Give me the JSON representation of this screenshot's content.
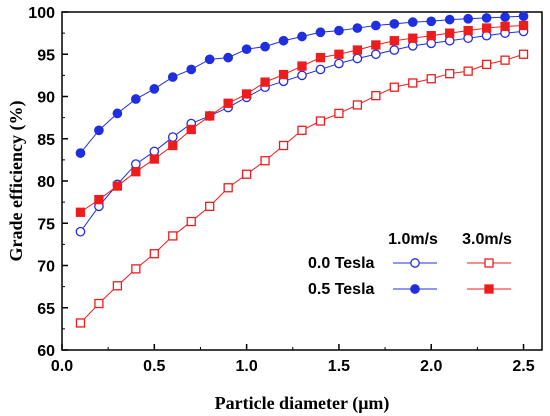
{
  "chart_data": {
    "type": "line",
    "xlabel": "Particle diameter (μm)",
    "ylabel": "Grade efficiency (%)",
    "xlim": [
      0.0,
      2.6
    ],
    "ylim": [
      60,
      100
    ],
    "x_ticks": [
      0.0,
      0.5,
      1.0,
      1.5,
      2.0,
      2.5
    ],
    "x_tick_labels": [
      "0.0",
      "0.5",
      "1.0",
      "1.5",
      "2.0",
      "2.5"
    ],
    "y_ticks": [
      60,
      65,
      70,
      75,
      80,
      85,
      90,
      95,
      100
    ],
    "y_tick_labels": [
      "60",
      "65",
      "70",
      "75",
      "80",
      "85",
      "90",
      "95",
      "100"
    ],
    "grid": false,
    "legend": {
      "placement": "lower-right",
      "column_headers": [
        "1.0m/s",
        "3.0m/s"
      ],
      "row_labels": [
        "0.0 Tesla",
        "0.5 Tesla"
      ]
    },
    "x": [
      0.1,
      0.2,
      0.3,
      0.4,
      0.5,
      0.6,
      0.7,
      0.8,
      0.9,
      1.0,
      1.1,
      1.2,
      1.3,
      1.4,
      1.5,
      1.6,
      1.7,
      1.8,
      1.9,
      2.0,
      2.1,
      2.2,
      2.3,
      2.4,
      2.5
    ],
    "series": [
      {
        "name": "0.0 Tesla, 1.0m/s",
        "color": "#1f2fe0",
        "marker": "circle",
        "filled": false,
        "values": [
          74.0,
          77.0,
          79.6,
          82.0,
          83.5,
          85.2,
          86.8,
          87.7,
          88.7,
          89.9,
          91.1,
          91.8,
          92.5,
          93.2,
          93.9,
          94.5,
          95.0,
          95.5,
          96.0,
          96.3,
          96.6,
          96.9,
          97.2,
          97.5,
          97.7
        ]
      },
      {
        "name": "0.5 Tesla, 1.0m/s",
        "color": "#1f2fe0",
        "marker": "circle",
        "filled": true,
        "values": [
          83.3,
          86.0,
          88.0,
          89.7,
          90.9,
          92.3,
          93.2,
          94.4,
          94.6,
          95.6,
          95.9,
          96.6,
          97.1,
          97.6,
          97.8,
          98.1,
          98.4,
          98.6,
          98.8,
          98.9,
          99.1,
          99.2,
          99.3,
          99.4,
          99.5
        ]
      },
      {
        "name": "0.0 Tesla, 3.0m/s",
        "color": "#ee1c1c",
        "marker": "square",
        "filled": false,
        "values": [
          63.2,
          65.5,
          67.6,
          69.6,
          71.4,
          73.5,
          75.2,
          77.0,
          79.2,
          80.8,
          82.4,
          84.2,
          86.0,
          87.1,
          88.0,
          89.0,
          90.1,
          91.1,
          91.6,
          92.1,
          92.7,
          93.0,
          93.8,
          94.3,
          95.0
        ]
      },
      {
        "name": "0.5 Tesla, 3.0m/s",
        "color": "#ee1c1c",
        "marker": "square",
        "filled": true,
        "values": [
          76.3,
          77.8,
          79.4,
          81.1,
          82.6,
          84.2,
          86.1,
          87.7,
          89.2,
          90.3,
          91.7,
          92.6,
          93.6,
          94.6,
          95.0,
          95.5,
          96.1,
          96.6,
          96.9,
          97.2,
          97.5,
          97.8,
          98.1,
          98.3,
          98.4
        ]
      }
    ]
  }
}
